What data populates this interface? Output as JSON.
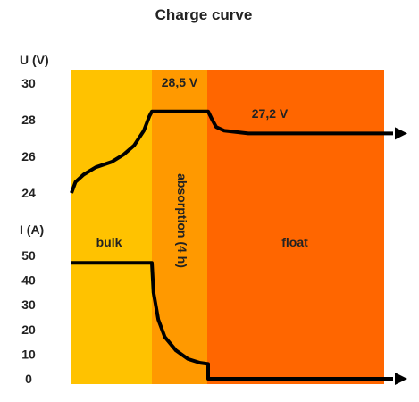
{
  "chart_data": {
    "type": "line",
    "title": "Charge curve",
    "voltage_axis": {
      "label": "U (V)",
      "ticks": [
        30,
        28,
        26,
        24
      ],
      "ylim": [
        24,
        30
      ]
    },
    "current_axis": {
      "label": "I (A)",
      "ticks": [
        50,
        40,
        30,
        20,
        10,
        0
      ],
      "ylim": [
        0,
        50
      ]
    },
    "phases": [
      {
        "name": "bulk",
        "color": "#FFC200"
      },
      {
        "name": "absorption (4 h)",
        "color": "#FF9900"
      },
      {
        "name": "float",
        "color": "#FF6600"
      }
    ],
    "annotations": {
      "absorption_voltage": "28,5 V",
      "float_voltage": "27,2 V"
    },
    "series": [
      {
        "description_unit": "V",
        "points": [
          [
            0,
            24.0
          ],
          [
            0.05,
            24.6
          ],
          [
            0.15,
            25.0
          ],
          [
            0.3,
            25.4
          ],
          [
            0.5,
            25.7
          ],
          [
            0.65,
            26.1
          ],
          [
            0.78,
            26.6
          ],
          [
            0.9,
            27.4
          ],
          [
            0.97,
            28.2
          ],
          [
            1.0,
            28.45
          ],
          [
            1.0,
            28.45
          ],
          [
            1.7,
            28.45
          ],
          [
            1.75,
            28.0
          ],
          [
            1.8,
            27.6
          ],
          [
            1.9,
            27.4
          ],
          [
            2.2,
            27.25
          ],
          [
            4.0,
            27.25
          ]
        ]
      },
      {
        "description_unit": "A",
        "points": [
          [
            0,
            47
          ],
          [
            1.0,
            47
          ],
          [
            1.02,
            35
          ],
          [
            1.08,
            24
          ],
          [
            1.16,
            17
          ],
          [
            1.3,
            11.5
          ],
          [
            1.45,
            8
          ],
          [
            1.6,
            6.5
          ],
          [
            1.7,
            6
          ],
          [
            1.7,
            0
          ],
          [
            4.0,
            0
          ]
        ]
      }
    ],
    "line_color": "#000000"
  }
}
